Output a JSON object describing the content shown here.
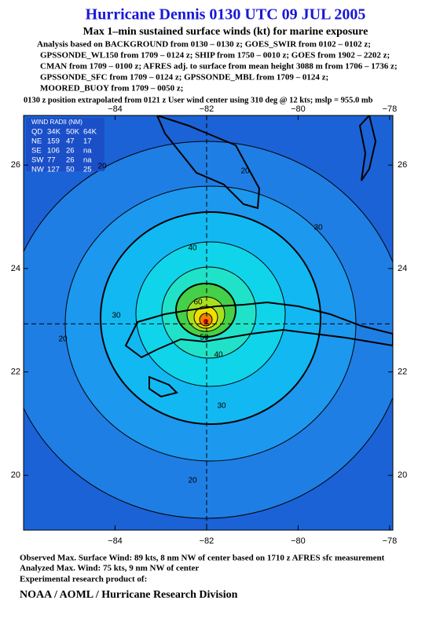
{
  "header": {
    "title": "Hurricane Dennis 0130 UTC 09 JUL 2005",
    "subtitle": "Max 1–min sustained surface winds (kt) for marine exposure",
    "analysis_lines": [
      "Analysis based on  BACKGROUND from 0130 – 0130 z;  GOES_SWIR from 0102 – 0102 z;",
      "GPSSONDE_WL150 from 1709 – 0124 z;  SHIP from 1750 – 0010 z;  GOES from 1902 – 2202 z;",
      "CMAN from 1709 – 0100 z;  AFRES adj. to surface from mean height 3088 m from 1706 – 1736 z;",
      "GPSSONDE_SFC from 1709 – 0124 z;  GPSSONDE_MBL from 1709 – 0124 z;",
      "MOORED_BUOY from 1709 – 0050 z;"
    ],
    "position_note": "0130 z position extrapolated from 0121 z User wind center using 310 deg @ 12 kts; mslp = 955.0 mb"
  },
  "map": {
    "xlim": [
      -86,
      -77.93
    ],
    "ylim": [
      18.94,
      26.96
    ],
    "xticks": [
      {
        "value": -84,
        "label": "−84"
      },
      {
        "value": -82,
        "label": "−82"
      },
      {
        "value": -80,
        "label": "−80"
      },
      {
        "value": -78,
        "label": "−78"
      }
    ],
    "yticks": [
      20,
      22,
      24,
      26
    ],
    "center": {
      "lon": -82,
      "lat": 22.93
    },
    "contour_labels": [
      20,
      20,
      30,
      40,
      30,
      20,
      60,
      50,
      40,
      30,
      20
    ]
  },
  "wind_radii": {
    "title": "WIND RADII (NM)",
    "columns": [
      "QD",
      "34K",
      "50K",
      "64K"
    ],
    "rows": [
      [
        "NE",
        "159",
        "47",
        "17"
      ],
      [
        "SE",
        "106",
        "26",
        "na"
      ],
      [
        "SW",
        "77",
        "26",
        "na"
      ],
      [
        "NW",
        "127",
        "50",
        "25"
      ]
    ]
  },
  "footer": {
    "lines": [
      "Observed Max. Surface Wind: 89 kts, 8 nm NW of center based on 1710 z AFRES sfc measurement",
      "Analyzed Max. Wind: 75 kts, 9 nm NW of center",
      "Experimental research product of:"
    ],
    "org": "NOAA / AOML / Hurricane Research Division"
  }
}
